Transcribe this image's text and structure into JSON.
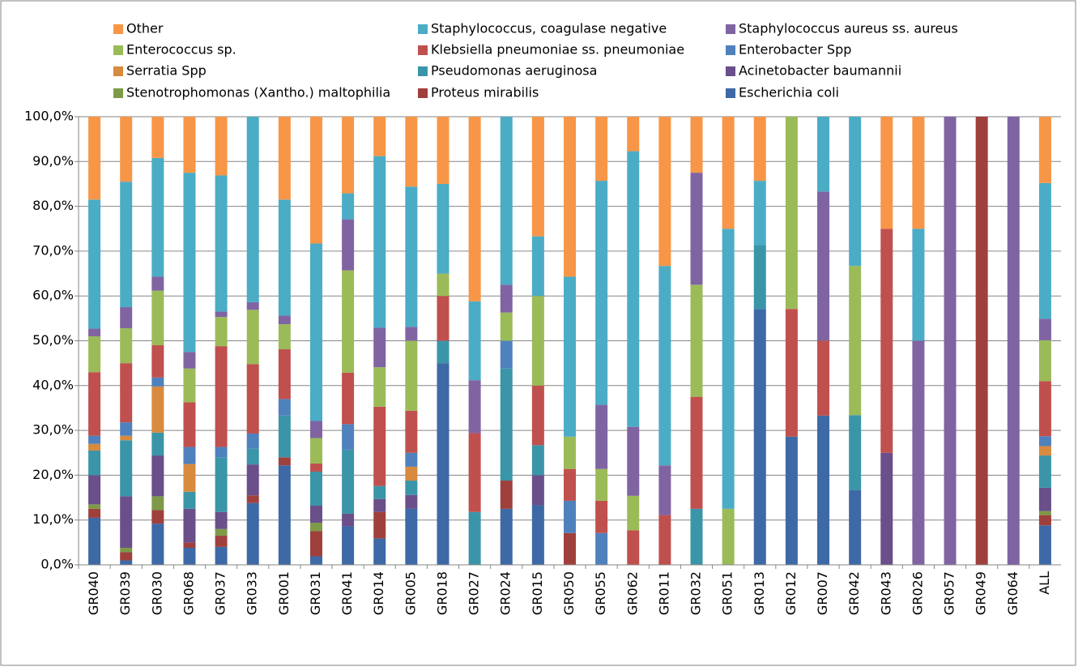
{
  "chart_data": {
    "type": "stacked_bar_100",
    "categories": [
      "GR040",
      "GR039",
      "GR030",
      "GR068",
      "GR037",
      "GR033",
      "GR001",
      "GR031",
      "GR041",
      "GR014",
      "GR005",
      "GR018",
      "GR027",
      "GR024",
      "GR015",
      "GR050",
      "GR055",
      "GR062",
      "GR011",
      "GR032",
      "GR051",
      "GR013",
      "GR012",
      "GR007",
      "GR042",
      "GR043",
      "GR026",
      "GR057",
      "GR049",
      "GR064",
      "ALL"
    ],
    "series": [
      {
        "name": "Escherichia coli",
        "color": "#3D69A6",
        "values": [
          10.5,
          1,
          9.2,
          3.8,
          4,
          13.8,
          22.2,
          1.9,
          8.6,
          5.9,
          12.5,
          45,
          0,
          12.5,
          13.3,
          0,
          0,
          0,
          0,
          0,
          0,
          57.1,
          28.6,
          33.3,
          16.7,
          0,
          0,
          0,
          0,
          0,
          8.8
        ]
      },
      {
        "name": "Proteus mirabilis",
        "color": "#A0403D",
        "values": [
          2,
          1.8,
          3,
          1.2,
          2.5,
          1.7,
          1.8,
          5.6,
          0,
          5.9,
          0,
          0,
          0,
          6.3,
          0,
          7.1,
          0,
          0,
          0,
          0,
          0,
          0,
          0,
          0,
          0,
          0,
          0,
          0,
          100,
          0,
          2.3
        ]
      },
      {
        "name": "Stenotrophomonas (Xantho.) maltophilia",
        "color": "#7E9A48",
        "values": [
          1,
          1,
          3.1,
          0,
          1.5,
          0,
          0,
          1.9,
          0,
          0,
          0,
          0,
          0,
          0,
          0,
          0,
          0,
          0,
          0,
          0,
          0,
          0,
          0,
          0,
          0,
          0,
          0,
          0,
          0,
          0,
          0.9
        ]
      },
      {
        "name": "Acinetobacter baumannii",
        "color": "#6A4F8A",
        "values": [
          6.5,
          11.5,
          9.1,
          7.5,
          3.8,
          6.9,
          0,
          3.8,
          2.8,
          2.9,
          3.1,
          0,
          0,
          0,
          6.7,
          0,
          0,
          0,
          0,
          0,
          0,
          0,
          0,
          0,
          0,
          25,
          0,
          0,
          0,
          0,
          5.2
        ]
      },
      {
        "name": "Pseudomonas aeruginosa",
        "color": "#3B95A9",
        "values": [
          5.5,
          12.5,
          5.1,
          3.8,
          12.2,
          3.5,
          9.3,
          7.6,
          14.3,
          2.9,
          3.2,
          5,
          11.8,
          25,
          6.7,
          0,
          0,
          0,
          0,
          12.5,
          0,
          14.3,
          0,
          0,
          16.7,
          0,
          0,
          0,
          0,
          0,
          7.2
        ]
      },
      {
        "name": "Serratia Spp",
        "color": "#D88A3E",
        "values": [
          1.5,
          1,
          10.3,
          6.2,
          0,
          0,
          0,
          0,
          0,
          0,
          3.1,
          0,
          0,
          0,
          0,
          0,
          0,
          0,
          0,
          0,
          0,
          0,
          0,
          0,
          0,
          0,
          0,
          0,
          0,
          0,
          2.1
        ]
      },
      {
        "name": "Enterobacter Spp",
        "color": "#4F81BD",
        "values": [
          1.8,
          3,
          2,
          3.8,
          2.3,
          3.4,
          3.7,
          0,
          5.7,
          0,
          3.1,
          0,
          0,
          6.2,
          0,
          7.2,
          7.1,
          0,
          0,
          0,
          0,
          0,
          0,
          0,
          0,
          0,
          0,
          0,
          0,
          0,
          2.2
        ]
      },
      {
        "name": "Klebsiella pneumoniae ss. pneumoniae",
        "color": "#C0504D",
        "values": [
          14.2,
          13.2,
          7.2,
          10,
          22.5,
          15.5,
          11.1,
          1.8,
          11.5,
          17.7,
          9.4,
          10,
          17.6,
          0,
          13.3,
          7.1,
          7.2,
          7.7,
          11.1,
          25,
          0,
          0,
          28.5,
          16.7,
          0,
          50,
          0,
          0,
          0,
          0,
          12.3
        ]
      },
      {
        "name": "Enterococcus sp.",
        "color": "#9BBB59",
        "values": [
          8,
          7.8,
          12.2,
          7.5,
          6.5,
          12.1,
          5.6,
          5.7,
          22.8,
          8.8,
          15.6,
          5,
          0,
          6.3,
          20,
          7.2,
          7.1,
          7.7,
          0,
          25,
          12.5,
          0,
          42.9,
          0,
          33.3,
          0,
          0,
          0,
          0,
          0,
          9.1
        ]
      },
      {
        "name": "Staphylococcus aureus ss. aureus",
        "color": "#8064A2",
        "values": [
          1.7,
          4.7,
          3.1,
          3.7,
          1.2,
          1.7,
          1.9,
          3.8,
          11.4,
          8.8,
          3.1,
          0,
          11.8,
          6.2,
          0,
          0,
          14.3,
          15.4,
          11.1,
          25,
          0,
          0,
          0,
          33.3,
          0,
          0,
          50,
          100,
          0,
          100,
          4.8
        ]
      },
      {
        "name": "Staphylococcus, coagulase negative",
        "color": "#4BACC6",
        "values": [
          28.8,
          28,
          26.5,
          40,
          30.4,
          41.4,
          25.9,
          39.6,
          5.8,
          38.3,
          31.3,
          20,
          17.6,
          37.5,
          13.3,
          35.7,
          50,
          61.5,
          44.5,
          0,
          62.5,
          14.3,
          0,
          16.7,
          33.3,
          0,
          25,
          0,
          0,
          0,
          30.3
        ]
      },
      {
        "name": "Other",
        "color": "#F79646",
        "values": [
          18.5,
          14.5,
          9.2,
          12.5,
          13.1,
          0,
          18.5,
          28.3,
          17.1,
          8.8,
          15.6,
          15,
          41.2,
          0,
          26.7,
          35.7,
          14.3,
          7.7,
          33.3,
          12.5,
          25,
          14.3,
          0,
          0,
          0,
          25,
          25,
          0,
          0,
          0,
          14.8
        ]
      }
    ],
    "ylim": [
      0,
      100
    ],
    "yticks": [
      {
        "value": 0,
        "label": "0,0%"
      },
      {
        "value": 10,
        "label": "10,0%"
      },
      {
        "value": 20,
        "label": "20,0%"
      },
      {
        "value": 30,
        "label": "30,0%"
      },
      {
        "value": 40,
        "label": "40,0%"
      },
      {
        "value": 50,
        "label": "50,0%"
      },
      {
        "value": 60,
        "label": "60,0%"
      },
      {
        "value": 70,
        "label": "70,0%"
      },
      {
        "value": 80,
        "label": "80,0%"
      },
      {
        "value": 90,
        "label": "90,0%"
      },
      {
        "value": 100,
        "label": "100,0%"
      }
    ],
    "grid": true,
    "legend": "top"
  }
}
